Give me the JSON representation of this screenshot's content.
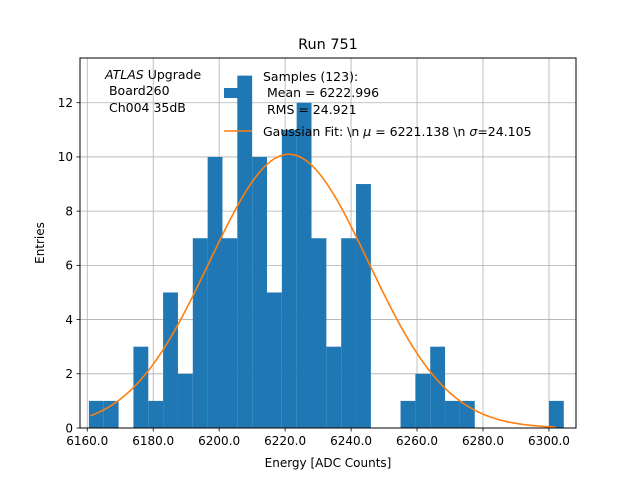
{
  "chart_data": {
    "type": "bar",
    "title": "Run 751",
    "xlabel": "Energy [ADC Counts]",
    "ylabel": "Entries",
    "xlim": [
      6157.8,
      6308.2
    ],
    "ylim": [
      0,
      13.65
    ],
    "xticks": [
      6160,
      6180,
      6200,
      6220,
      6240,
      6260,
      6280,
      6300
    ],
    "xtick_labels": [
      "6160.0",
      "6180.0",
      "6200.0",
      "6220.0",
      "6240.0",
      "6260.0",
      "6280.0",
      "6300.0"
    ],
    "yticks": [
      0,
      2,
      4,
      6,
      8,
      10,
      12
    ],
    "ytick_labels": [
      "0",
      "2",
      "4",
      "6",
      "8",
      "10",
      "12"
    ],
    "grid": true,
    "bin_edges": [
      6160.5,
      6165.0,
      6169.5,
      6174.0,
      6178.5,
      6183.0,
      6187.5,
      6192.0,
      6196.5,
      6201.0,
      6205.5,
      6210.0,
      6214.5,
      6219.0,
      6223.5,
      6228.0,
      6232.5,
      6237.0,
      6241.5,
      6246.0,
      6250.5,
      6255.0,
      6259.5,
      6264.0,
      6268.5,
      6273.0,
      6277.5,
      6282.0,
      6286.5,
      6291.0,
      6295.5,
      6300.0,
      6304.5
    ],
    "counts": [
      1,
      1,
      0,
      3,
      1,
      5,
      2,
      7,
      10,
      7,
      13,
      10,
      5,
      11,
      12,
      7,
      3,
      7,
      9,
      0,
      0,
      1,
      2,
      3,
      1,
      1,
      0,
      0,
      0,
      0,
      0,
      1
    ],
    "histogram_color": "#1f77b4",
    "fit": {
      "color": "#ff7f0e",
      "amplitude": 10.1,
      "mu": 6221.138,
      "sigma": 24.105,
      "x_range": [
        6161,
        6302
      ]
    },
    "annotation": {
      "line1_italic": "ATLAS",
      "line1_rest": " Upgrade",
      "line2": " Board260",
      "line3": " Ch004 35dB"
    },
    "legend": {
      "position": "top-right",
      "hist_label_line1": "Samples (123):",
      "hist_label_line2": " Mean = 6222.996",
      "hist_label_line3": " RMS = 24.921",
      "fit_label_prefix": "Gaussian Fit: \\n ",
      "fit_label_mu_symbol": "μ",
      "fit_label_mu_text": " = 6221.138 \\n ",
      "fit_label_sigma_symbol": "σ",
      "fit_label_sigma_text": "=24.105"
    }
  }
}
